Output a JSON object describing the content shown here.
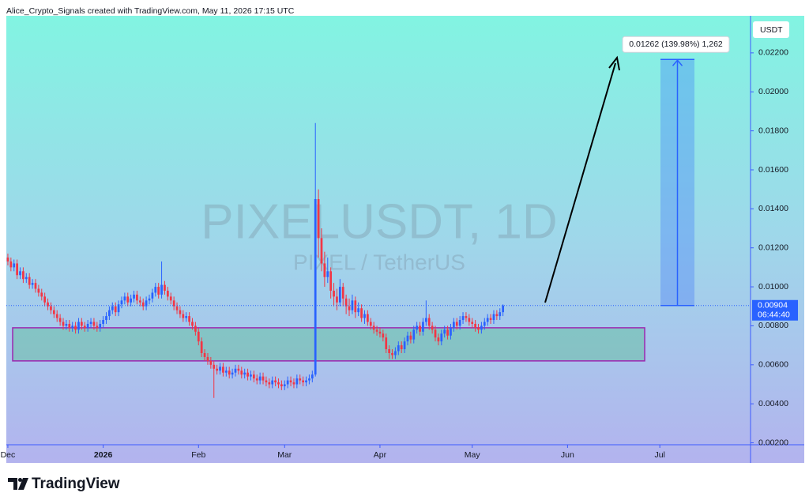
{
  "header": {
    "text": "Alice_Crypto_Signals created with TradingView.com, May 11, 2026 17:15 UTC"
  },
  "chart_data": {
    "type": "candlestick",
    "title": "PIXELUSDT, 1D",
    "subtitle": "PIXEL / TetherUS",
    "currency": "USDT",
    "up_color": "#2962ff",
    "down_color": "#f23645",
    "xlim": [
      -0.5,
      241.5
    ],
    "xticks": [
      {
        "value": 0,
        "label": "Dec"
      },
      {
        "value": 31,
        "label": "2026"
      },
      {
        "value": 62,
        "label": "Feb"
      },
      {
        "value": 90,
        "label": "Mar"
      },
      {
        "value": 121,
        "label": "Apr"
      },
      {
        "value": 151,
        "label": "May"
      },
      {
        "value": 182,
        "label": "Jun"
      },
      {
        "value": 212,
        "label": "Jul"
      }
    ],
    "ylim": [
      0.0019,
      0.0239
    ],
    "yticks": [
      {
        "value": 0.002,
        "label": "0.00200"
      },
      {
        "value": 0.004,
        "label": "0.00400"
      },
      {
        "value": 0.006,
        "label": "0.00600"
      },
      {
        "value": 0.008,
        "label": "0.00800"
      },
      {
        "value": 0.01,
        "label": "0.01000"
      },
      {
        "value": 0.012,
        "label": "0.01200"
      },
      {
        "value": 0.014,
        "label": "0.01400"
      },
      {
        "value": 0.016,
        "label": "0.01600"
      },
      {
        "value": 0.018,
        "label": "0.01800"
      },
      {
        "value": 0.02,
        "label": "0.02000"
      },
      {
        "value": 0.022,
        "label": "0.02200"
      }
    ],
    "open": [
      0.0115,
      0.0113,
      0.011,
      0.0112,
      0.0106,
      0.0108,
      0.0104,
      0.0105,
      0.0101,
      0.0102,
      0.0099,
      0.0097,
      0.0095,
      0.0092,
      0.009,
      0.0088,
      0.0086,
      0.0084,
      0.0082,
      0.008,
      0.0081,
      0.0079,
      0.008,
      0.0078,
      0.0082,
      0.008,
      0.0079,
      0.0081,
      0.0082,
      0.008,
      0.0079,
      0.0081,
      0.0083,
      0.0085,
      0.0088,
      0.009,
      0.0087,
      0.0091,
      0.0093,
      0.0095,
      0.0092,
      0.0094,
      0.0096,
      0.0093,
      0.0092,
      0.009,
      0.0093,
      0.0094,
      0.0097,
      0.01,
      0.0096,
      0.0101,
      0.0098,
      0.0095,
      0.0093,
      0.009,
      0.0088,
      0.0086,
      0.0084,
      0.0085,
      0.0082,
      0.008,
      0.0077,
      0.0072,
      0.0066,
      0.0064,
      0.0062,
      0.006,
      0.0058,
      0.0057,
      0.0059,
      0.0056,
      0.0057,
      0.0055,
      0.0056,
      0.0058,
      0.0057,
      0.0055,
      0.0056,
      0.0054,
      0.0055,
      0.0053,
      0.0052,
      0.0054,
      0.0052,
      0.0051,
      0.005,
      0.0052,
      0.0051,
      0.005,
      0.0049,
      0.005,
      0.0052,
      0.0051,
      0.005,
      0.0053,
      0.0052,
      0.0051,
      0.0052,
      0.0053,
      0.0055,
      0.0145,
      0.0125,
      0.0112,
      0.0105,
      0.0108,
      0.0098,
      0.0095,
      0.0092,
      0.01,
      0.0094,
      0.009,
      0.0088,
      0.0093,
      0.0087,
      0.0089,
      0.0084,
      0.0086,
      0.0082,
      0.008,
      0.0078,
      0.0077,
      0.0076,
      0.0074,
      0.0068,
      0.0066,
      0.0065,
      0.0067,
      0.007,
      0.0068,
      0.0072,
      0.0075,
      0.0073,
      0.0078,
      0.008,
      0.0077,
      0.0082,
      0.0084,
      0.008,
      0.0078,
      0.0074,
      0.0072,
      0.0076,
      0.0078,
      0.0075,
      0.0079,
      0.0082,
      0.008,
      0.0083,
      0.0085,
      0.0084,
      0.0082,
      0.0081,
      0.0079,
      0.0078,
      0.008,
      0.0082,
      0.0084,
      0.0083,
      0.0086,
      0.0085,
      0.0087
    ],
    "high": [
      0.0117,
      0.0115,
      0.0114,
      0.0114,
      0.011,
      0.011,
      0.0107,
      0.0107,
      0.0104,
      0.0104,
      0.0101,
      0.0099,
      0.0097,
      0.0094,
      0.0092,
      0.009,
      0.0088,
      0.0086,
      0.0084,
      0.0083,
      0.0083,
      0.0082,
      0.0082,
      0.0084,
      0.0084,
      0.0082,
      0.0083,
      0.0084,
      0.0084,
      0.0082,
      0.0083,
      0.0085,
      0.0087,
      0.009,
      0.0092,
      0.0092,
      0.0093,
      0.0095,
      0.0097,
      0.0097,
      0.0096,
      0.0098,
      0.0098,
      0.0095,
      0.0094,
      0.0095,
      0.0096,
      0.0099,
      0.0102,
      0.0102,
      0.0113,
      0.0103,
      0.01,
      0.0097,
      0.0095,
      0.0092,
      0.009,
      0.0088,
      0.0087,
      0.0087,
      0.0084,
      0.0082,
      0.0079,
      0.0074,
      0.0068,
      0.0066,
      0.0064,
      0.0062,
      0.006,
      0.0061,
      0.0061,
      0.0059,
      0.0059,
      0.0058,
      0.006,
      0.006,
      0.0059,
      0.0058,
      0.0058,
      0.0057,
      0.0057,
      0.0055,
      0.0056,
      0.0056,
      0.0054,
      0.0053,
      0.0054,
      0.0054,
      0.0053,
      0.0052,
      0.0052,
      0.0054,
      0.0054,
      0.0053,
      0.0055,
      0.0055,
      0.0054,
      0.0054,
      0.0055,
      0.0057,
      0.0184,
      0.015,
      0.013,
      0.0118,
      0.0115,
      0.011,
      0.0102,
      0.0099,
      0.0104,
      0.0102,
      0.0096,
      0.0094,
      0.0096,
      0.0095,
      0.0092,
      0.0091,
      0.0088,
      0.0088,
      0.0084,
      0.0082,
      0.008,
      0.0079,
      0.0078,
      0.0076,
      0.007,
      0.0068,
      0.0069,
      0.0072,
      0.0072,
      0.0074,
      0.0077,
      0.0077,
      0.008,
      0.0082,
      0.0082,
      0.0084,
      0.0093,
      0.0086,
      0.0082,
      0.008,
      0.0076,
      0.0078,
      0.008,
      0.008,
      0.0081,
      0.0084,
      0.0084,
      0.0085,
      0.0087,
      0.0087,
      0.0086,
      0.0084,
      0.0083,
      0.0081,
      0.0082,
      0.0084,
      0.0086,
      0.0086,
      0.0088,
      0.0088,
      0.0089,
      0.0091
    ],
    "low": [
      0.0111,
      0.0108,
      0.0108,
      0.0104,
      0.0104,
      0.0102,
      0.0102,
      0.0099,
      0.0099,
      0.0097,
      0.0095,
      0.0093,
      0.009,
      0.0088,
      0.0086,
      0.0084,
      0.0082,
      0.008,
      0.0078,
      0.0078,
      0.0077,
      0.0077,
      0.0076,
      0.0076,
      0.0078,
      0.0077,
      0.0077,
      0.0079,
      0.0078,
      0.0077,
      0.0077,
      0.0079,
      0.0081,
      0.0083,
      0.0086,
      0.0085,
      0.0085,
      0.0089,
      0.0091,
      0.009,
      0.009,
      0.0092,
      0.0091,
      0.009,
      0.0088,
      0.0088,
      0.0091,
      0.0092,
      0.0095,
      0.0094,
      0.0094,
      0.0096,
      0.0093,
      0.0091,
      0.0088,
      0.0086,
      0.0084,
      0.0082,
      0.0082,
      0.008,
      0.0078,
      0.0075,
      0.007,
      0.0064,
      0.0062,
      0.006,
      0.0058,
      0.0043,
      0.0055,
      0.0055,
      0.0054,
      0.0054,
      0.0053,
      0.0053,
      0.0054,
      0.0055,
      0.0053,
      0.0053,
      0.0052,
      0.0052,
      0.0051,
      0.005,
      0.005,
      0.005,
      0.0049,
      0.0048,
      0.0048,
      0.0049,
      0.0048,
      0.0047,
      0.0047,
      0.0048,
      0.0049,
      0.0048,
      0.0048,
      0.005,
      0.0049,
      0.0049,
      0.005,
      0.0051,
      0.0054,
      0.0115,
      0.0108,
      0.01,
      0.0102,
      0.0094,
      0.009,
      0.0088,
      0.009,
      0.009,
      0.0086,
      0.0085,
      0.0086,
      0.0084,
      0.0085,
      0.0082,
      0.0081,
      0.008,
      0.0078,
      0.0076,
      0.0075,
      0.0074,
      0.0072,
      0.0066,
      0.0063,
      0.0063,
      0.0063,
      0.0065,
      0.0066,
      0.0066,
      0.007,
      0.0071,
      0.0071,
      0.0076,
      0.0075,
      0.0075,
      0.008,
      0.0078,
      0.0076,
      0.0072,
      0.007,
      0.007,
      0.0074,
      0.0073,
      0.0073,
      0.0077,
      0.0078,
      0.0078,
      0.0081,
      0.0082,
      0.008,
      0.0079,
      0.0077,
      0.0076,
      0.0076,
      0.0078,
      0.008,
      0.0081,
      0.0081,
      0.0083,
      0.0083,
      0.0085
    ],
    "close": [
      0.0113,
      0.011,
      0.0112,
      0.0106,
      0.0108,
      0.0104,
      0.0105,
      0.0101,
      0.0102,
      0.0099,
      0.0097,
      0.0095,
      0.0092,
      0.009,
      0.0088,
      0.0086,
      0.0084,
      0.0082,
      0.008,
      0.0081,
      0.0079,
      0.008,
      0.0078,
      0.0082,
      0.008,
      0.0079,
      0.0081,
      0.0082,
      0.008,
      0.0079,
      0.0081,
      0.0083,
      0.0085,
      0.0088,
      0.009,
      0.0087,
      0.0091,
      0.0093,
      0.0095,
      0.0092,
      0.0094,
      0.0096,
      0.0093,
      0.0092,
      0.009,
      0.0093,
      0.0094,
      0.0097,
      0.01,
      0.0096,
      0.0101,
      0.0098,
      0.0095,
      0.0093,
      0.009,
      0.0088,
      0.0086,
      0.0084,
      0.0085,
      0.0082,
      0.008,
      0.0077,
      0.0072,
      0.0066,
      0.0064,
      0.0062,
      0.006,
      0.0058,
      0.0057,
      0.0059,
      0.0056,
      0.0057,
      0.0055,
      0.0056,
      0.0058,
      0.0057,
      0.0055,
      0.0056,
      0.0054,
      0.0055,
      0.0053,
      0.0052,
      0.0054,
      0.0052,
      0.0051,
      0.005,
      0.0052,
      0.0051,
      0.005,
      0.0049,
      0.005,
      0.0052,
      0.0051,
      0.005,
      0.0053,
      0.0052,
      0.0051,
      0.0052,
      0.0053,
      0.0055,
      0.0145,
      0.0125,
      0.0112,
      0.0105,
      0.0108,
      0.0098,
      0.0095,
      0.0092,
      0.01,
      0.0094,
      0.009,
      0.0088,
      0.0093,
      0.0087,
      0.0089,
      0.0084,
      0.0086,
      0.0082,
      0.008,
      0.0078,
      0.0077,
      0.0076,
      0.0074,
      0.0068,
      0.0066,
      0.0065,
      0.0067,
      0.007,
      0.0068,
      0.0072,
      0.0075,
      0.0073,
      0.0078,
      0.008,
      0.0077,
      0.0082,
      0.0084,
      0.008,
      0.0078,
      0.0074,
      0.0072,
      0.0076,
      0.0078,
      0.0075,
      0.0079,
      0.0082,
      0.008,
      0.0083,
      0.0085,
      0.0084,
      0.0082,
      0.0081,
      0.0079,
      0.0078,
      0.008,
      0.0082,
      0.0084,
      0.0083,
      0.0086,
      0.0085,
      0.0087,
      0.00904
    ],
    "last_price": 0.00904,
    "countdown": "06:44:40",
    "zone": {
      "low": 0.0062,
      "high": 0.0079
    },
    "measure": {
      "start": 0.00904,
      "end": 0.02166,
      "label": "0.01262 (139.98%) 1,262"
    }
  },
  "footer": {
    "brand": "TradingView"
  }
}
